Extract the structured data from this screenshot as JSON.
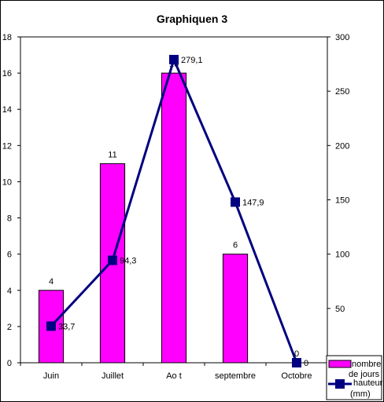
{
  "chart_data": {
    "type": "bar",
    "title": "Graphiquen  3",
    "categories": [
      "Juin",
      "Juillet",
      "Ao  t",
      "septembre",
      "Octobre"
    ],
    "y_left": {
      "ylim": [
        0,
        18
      ],
      "ticks": [
        "0",
        "2",
        "4",
        "6",
        "8",
        "10",
        "12",
        "14",
        "16",
        "18"
      ]
    },
    "y_right": {
      "ylim": [
        0,
        300
      ],
      "ticks": [
        "50",
        "100",
        "150",
        "200",
        "250",
        "300"
      ]
    },
    "series": [
      {
        "name": "nombre de jours",
        "type": "bar",
        "axis": "left",
        "color": "#ff00ff",
        "values": [
          4,
          11,
          16,
          6,
          0
        ],
        "labels": [
          "4",
          "11",
          "16",
          "6",
          "0"
        ]
      },
      {
        "name": "hauteur (mm)",
        "type": "line",
        "axis": "right",
        "color": "#000080",
        "values": [
          33.7,
          94.3,
          279.1,
          147.9,
          0
        ],
        "labels": [
          "33,7",
          "94,3",
          "279,1",
          "147,9",
          "0"
        ]
      }
    ],
    "grid": false,
    "legend_position": "bottom-right"
  }
}
